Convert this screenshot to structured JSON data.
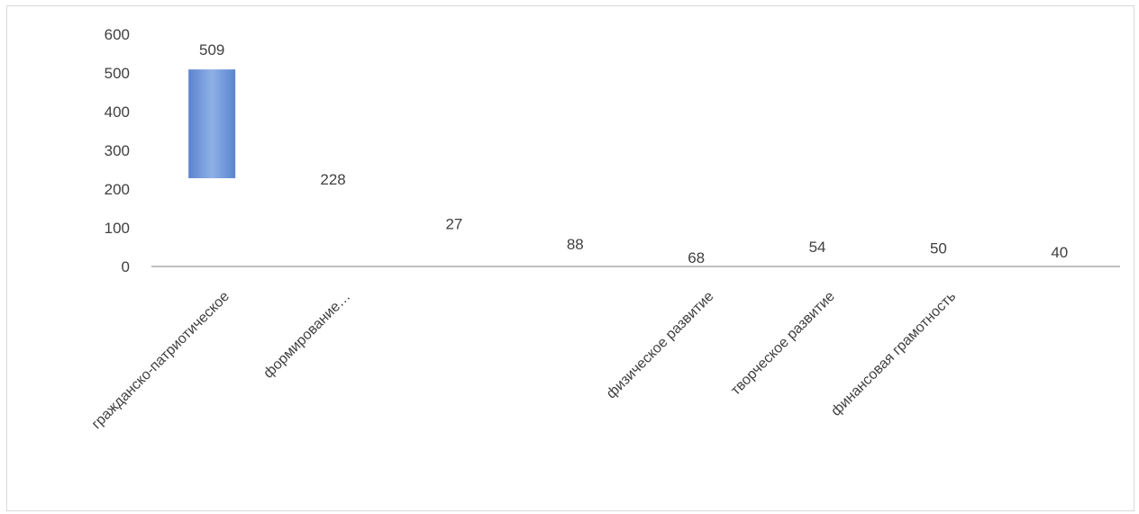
{
  "chart_data": {
    "type": "waterfall",
    "categories": [
      "гражданско-патриотическое",
      "формирование…",
      "",
      "",
      "физическое развитие",
      "творческое развитие",
      "финансовая грамотность",
      ""
    ],
    "values": [
      509,
      228,
      27,
      88,
      68,
      54,
      50,
      40
    ],
    "visible_bar": {
      "index": 0,
      "from": 228,
      "to": 509
    },
    "y_ticks": [
      0,
      100,
      200,
      300,
      400,
      500,
      600
    ],
    "ylim": [
      0,
      600
    ],
    "grid": false,
    "legend": "none",
    "colors": {
      "bar": "#6f94d6",
      "axis": "#bfbfbf",
      "text": "#404040"
    }
  }
}
